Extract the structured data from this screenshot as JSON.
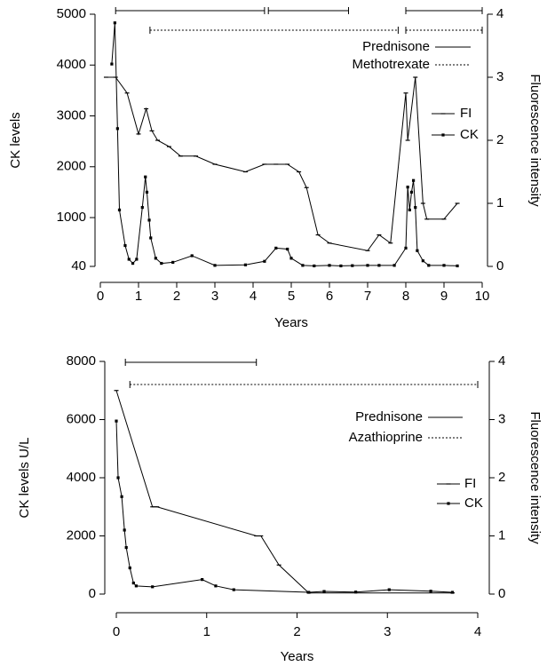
{
  "chart_data": [
    {
      "type": "line",
      "xlabel": "Years",
      "ylabel": "CK levels",
      "y2label": "Fluorescence intensity",
      "xlim": [
        0,
        10
      ],
      "xticks": [
        0,
        1,
        2,
        3,
        4,
        5,
        6,
        7,
        8,
        9,
        10
      ],
      "ylim": [
        40,
        5000
      ],
      "yticks": [
        40,
        1000,
        2000,
        3000,
        4000,
        5000
      ],
      "y2lim": [
        0,
        4
      ],
      "y2ticks": [
        0,
        1,
        2,
        3,
        4
      ],
      "series": [
        {
          "name": "FI",
          "axis": "y2",
          "color": "#000000",
          "marker": "dash",
          "x": [
            0.15,
            0.4,
            0.7,
            1.0,
            1.2,
            1.35,
            1.5,
            1.8,
            2.1,
            2.5,
            3.0,
            3.8,
            4.3,
            4.6,
            4.9,
            5.2,
            5.4,
            5.7,
            6.0,
            7.0,
            7.3,
            7.6,
            8.0,
            8.05,
            8.25,
            8.45,
            8.55,
            9.0,
            9.35
          ],
          "values": [
            3.0,
            3.0,
            2.75,
            2.1,
            2.5,
            2.15,
            2.0,
            1.9,
            1.75,
            1.75,
            1.62,
            1.5,
            1.62,
            1.62,
            1.62,
            1.5,
            1.25,
            0.5,
            0.37,
            0.25,
            0.5,
            0.37,
            2.75,
            2.0,
            3.0,
            1.0,
            0.75,
            0.75,
            1.0
          ]
        },
        {
          "name": "CK",
          "color": "#000000",
          "marker": "square",
          "x": [
            0.3,
            0.38,
            0.45,
            0.5,
            0.65,
            0.75,
            0.85,
            0.95,
            1.1,
            1.18,
            1.22,
            1.28,
            1.32,
            1.45,
            1.6,
            1.9,
            2.4,
            3.0,
            3.8,
            4.3,
            4.6,
            4.9,
            5.0,
            5.3,
            5.6,
            6.0,
            6.3,
            6.6,
            7.0,
            7.3,
            7.7,
            8.0,
            8.05,
            8.1,
            8.15,
            8.2,
            8.25,
            8.3,
            8.45,
            8.6,
            9.0,
            9.35
          ],
          "values": [
            4020,
            4830,
            2750,
            1150,
            450,
            180,
            100,
            180,
            1200,
            1800,
            1500,
            950,
            600,
            200,
            100,
            120,
            250,
            60,
            70,
            140,
            400,
            380,
            200,
            60,
            50,
            60,
            50,
            55,
            60,
            60,
            60,
            400,
            1600,
            1150,
            1500,
            1730,
            1200,
            350,
            150,
            60,
            60,
            50
          ]
        }
      ],
      "treatments": [
        {
          "name": "Prednisone",
          "style": "solid",
          "start": [
            0.4,
            4.4,
            8.0
          ],
          "end": [
            4.3,
            6.5,
            10.0
          ]
        },
        {
          "name": "Methotrexate",
          "style": "dotted",
          "start": [
            1.3,
            8.0
          ],
          "end": [
            7.8,
            10.0
          ]
        }
      ]
    },
    {
      "type": "line",
      "xlabel": "Years",
      "ylabel": "CK levels U/L",
      "y2label": "Fluorescence intensity",
      "xlim": [
        0,
        4
      ],
      "xticks": [
        0,
        1,
        2,
        3,
        4
      ],
      "ylim": [
        0,
        8000
      ],
      "yticks": [
        0,
        2000,
        4000,
        6000,
        8000
      ],
      "y2lim": [
        0,
        4
      ],
      "y2ticks": [
        0,
        1,
        2,
        3,
        4
      ],
      "series": [
        {
          "name": "FI",
          "axis": "y2",
          "color": "#000000",
          "marker": "dash",
          "x": [
            0.0,
            0.4,
            0.45,
            1.55,
            1.6,
            1.8,
            2.13,
            3.72
          ],
          "values": [
            3.5,
            1.5,
            1.5,
            1.0,
            1.0,
            0.5,
            0.02,
            0.02
          ]
        },
        {
          "name": "CK",
          "color": "#000000",
          "marker": "square",
          "x": [
            0.0,
            0.02,
            0.06,
            0.09,
            0.11,
            0.15,
            0.19,
            0.22,
            0.4,
            0.95,
            1.1,
            1.3,
            2.13,
            2.3,
            2.65,
            3.02,
            3.48,
            3.72
          ],
          "values": [
            5950,
            4000,
            3350,
            2200,
            1600,
            900,
            380,
            280,
            250,
            500,
            280,
            150,
            60,
            90,
            70,
            150,
            100,
            60
          ]
        }
      ],
      "treatments": [
        {
          "name": "Prednisone",
          "style": "solid",
          "start": [
            0.1
          ],
          "end": [
            1.55
          ]
        },
        {
          "name": "Azathioprine",
          "style": "dotted",
          "start": [
            0.15
          ],
          "end": [
            4.0
          ]
        }
      ]
    }
  ]
}
